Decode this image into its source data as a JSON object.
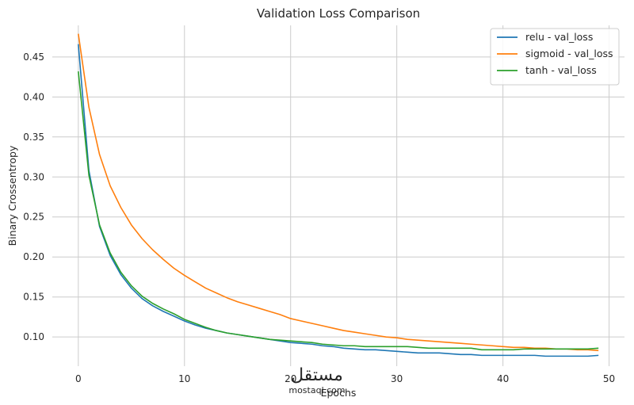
{
  "chart_data": {
    "type": "line",
    "title": "Validation Loss Comparison",
    "xlabel": "Epochs",
    "ylabel": "Binary Crossentropy",
    "xlim": [
      -2.45,
      51.45
    ],
    "ylim": [
      0.0635,
      0.4895
    ],
    "xticks": [
      0,
      10,
      20,
      30,
      40,
      50
    ],
    "yticks": [
      0.1,
      0.15,
      0.2,
      0.25,
      0.3,
      0.35,
      0.4,
      0.45
    ],
    "grid": true,
    "legend_position": "top-right",
    "x": [
      0,
      1,
      2,
      3,
      4,
      5,
      6,
      7,
      8,
      9,
      10,
      11,
      12,
      13,
      14,
      15,
      16,
      17,
      18,
      19,
      20,
      21,
      22,
      23,
      24,
      25,
      26,
      27,
      28,
      29,
      30,
      31,
      32,
      33,
      34,
      35,
      36,
      37,
      38,
      39,
      40,
      41,
      42,
      43,
      44,
      45,
      46,
      47,
      48,
      49
    ],
    "series": [
      {
        "name": "relu - val_loss",
        "color": "#1f77b4",
        "values": [
          0.466,
          0.308,
          0.238,
          0.202,
          0.178,
          0.161,
          0.148,
          0.139,
          0.132,
          0.126,
          0.12,
          0.115,
          0.111,
          0.108,
          0.105,
          0.103,
          0.101,
          0.099,
          0.097,
          0.095,
          0.093,
          0.092,
          0.091,
          0.089,
          0.088,
          0.086,
          0.085,
          0.084,
          0.084,
          0.083,
          0.082,
          0.081,
          0.08,
          0.08,
          0.08,
          0.079,
          0.078,
          0.078,
          0.077,
          0.077,
          0.077,
          0.077,
          0.077,
          0.077,
          0.076,
          0.076,
          0.076,
          0.076,
          0.076,
          0.077
        ]
      },
      {
        "name": "sigmoid - val_loss",
        "color": "#ff7f0e",
        "values": [
          0.479,
          0.387,
          0.328,
          0.289,
          0.262,
          0.24,
          0.223,
          0.209,
          0.197,
          0.186,
          0.177,
          0.169,
          0.161,
          0.155,
          0.149,
          0.144,
          0.14,
          0.136,
          0.132,
          0.128,
          0.123,
          0.12,
          0.117,
          0.114,
          0.111,
          0.108,
          0.106,
          0.104,
          0.102,
          0.1,
          0.099,
          0.097,
          0.096,
          0.095,
          0.094,
          0.093,
          0.092,
          0.091,
          0.09,
          0.089,
          0.088,
          0.087,
          0.087,
          0.086,
          0.086,
          0.085,
          0.085,
          0.084,
          0.084,
          0.083
        ]
      },
      {
        "name": "tanh - val_loss",
        "color": "#2ca02c",
        "values": [
          0.432,
          0.302,
          0.24,
          0.205,
          0.181,
          0.164,
          0.151,
          0.142,
          0.135,
          0.129,
          0.122,
          0.117,
          0.112,
          0.108,
          0.105,
          0.103,
          0.101,
          0.099,
          0.097,
          0.096,
          0.095,
          0.094,
          0.093,
          0.091,
          0.09,
          0.089,
          0.089,
          0.088,
          0.088,
          0.088,
          0.088,
          0.088,
          0.087,
          0.086,
          0.086,
          0.086,
          0.086,
          0.086,
          0.084,
          0.084,
          0.084,
          0.084,
          0.085,
          0.085,
          0.085,
          0.085,
          0.085,
          0.085,
          0.085,
          0.086
        ]
      }
    ]
  },
  "watermark": {
    "arabic": "مستقل",
    "latin": "mostaql.com"
  },
  "colors": {
    "grid": "#cccccc",
    "text": "#262626",
    "background": "#ffffff"
  }
}
